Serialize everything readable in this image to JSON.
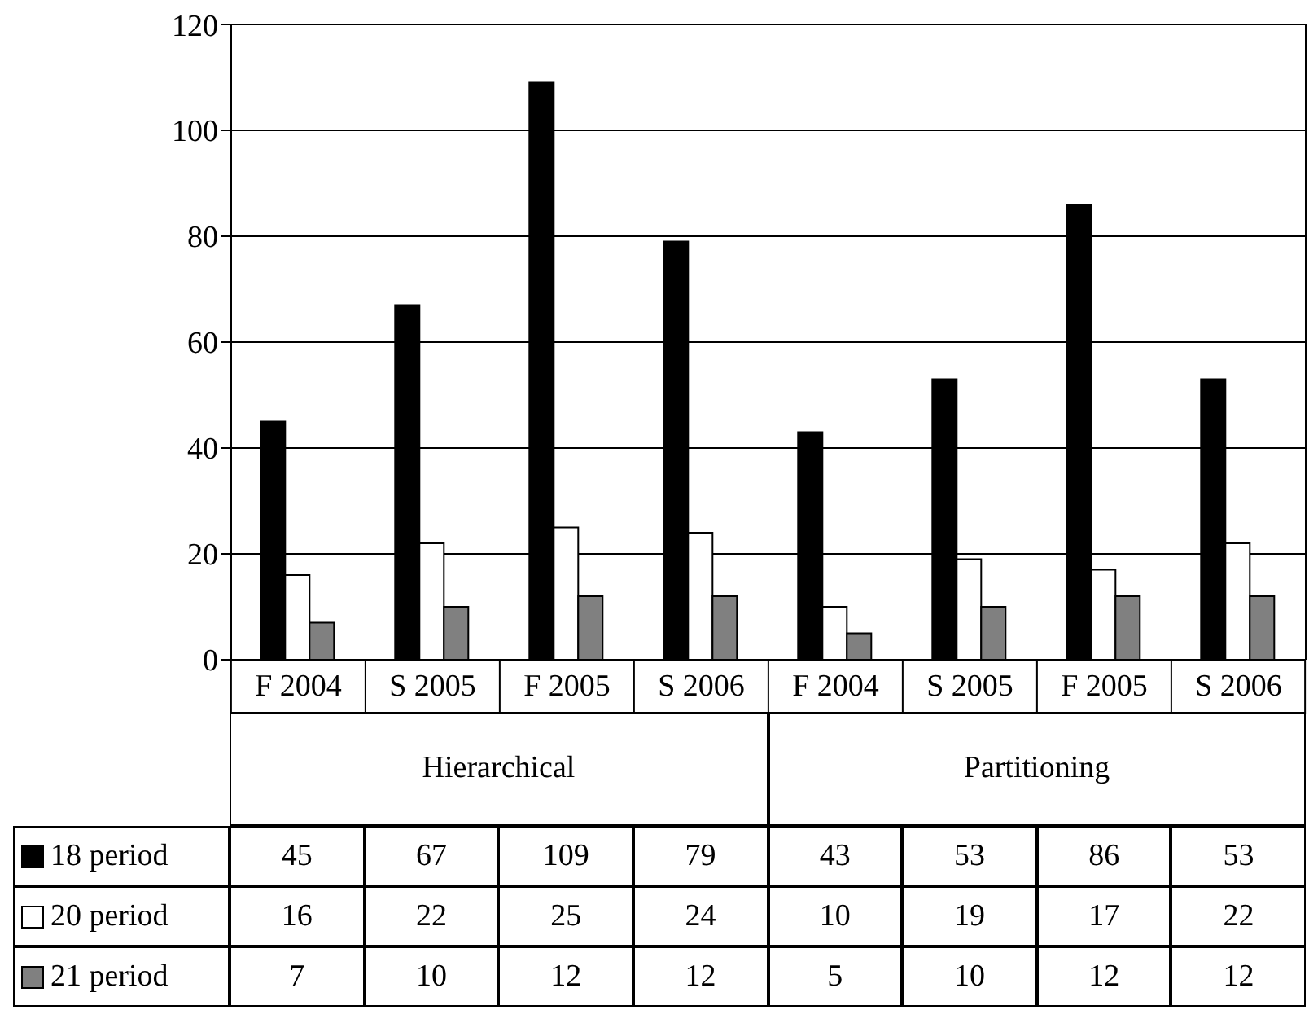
{
  "chart_data": {
    "type": "bar",
    "categories": [
      "F 2004",
      "S 2005",
      "F 2005",
      "S 2006",
      "F 2004",
      "S 2005",
      "F 2005",
      "S 2006"
    ],
    "annotations": [
      "Hierarchical",
      "Partitioning"
    ],
    "series": [
      {
        "name": "18 period",
        "color": "#000000",
        "values": [
          45,
          67,
          109,
          79,
          43,
          53,
          86,
          53
        ]
      },
      {
        "name": "20 period",
        "color": "#ffffff",
        "values": [
          16,
          22,
          25,
          24,
          10,
          19,
          17,
          22
        ]
      },
      {
        "name": "21 period",
        "color": "#808080",
        "values": [
          7,
          10,
          12,
          12,
          5,
          10,
          12,
          12
        ]
      }
    ],
    "ylim": [
      0,
      120
    ],
    "yticks": [
      0,
      20,
      40,
      60,
      80,
      100,
      120
    ],
    "grid": "y",
    "legend": "bottom left",
    "data_labels": true
  }
}
